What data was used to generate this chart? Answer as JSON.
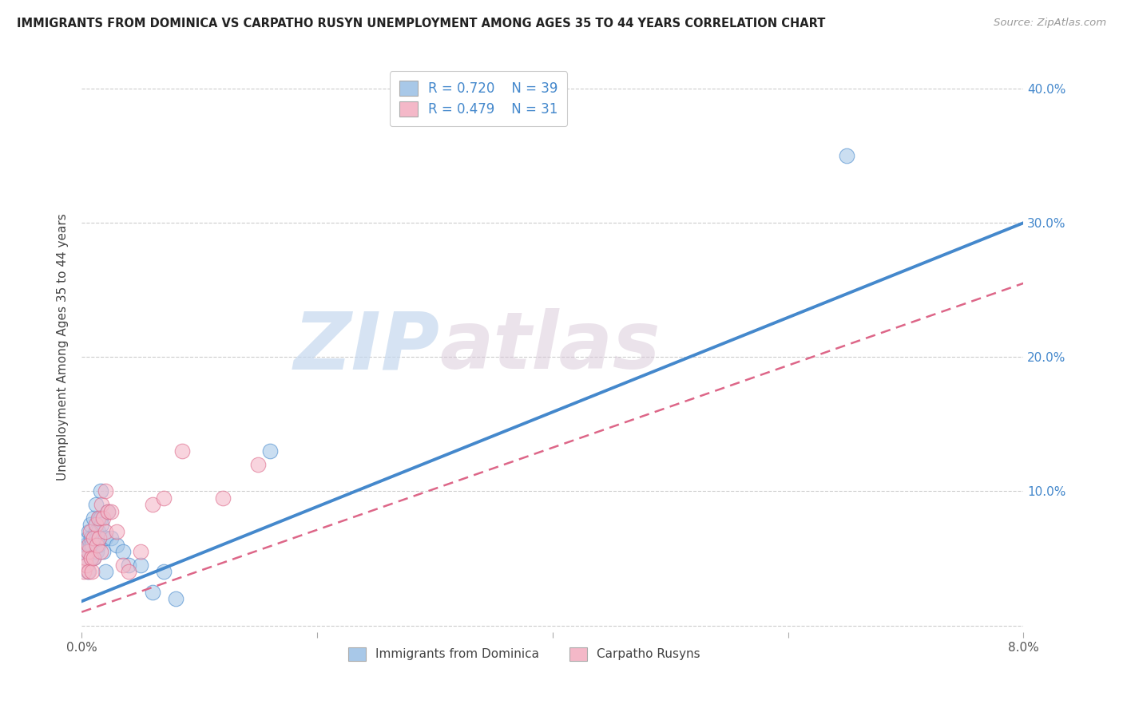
{
  "title": "IMMIGRANTS FROM DOMINICA VS CARPATHO RUSYN UNEMPLOYMENT AMONG AGES 35 TO 44 YEARS CORRELATION CHART",
  "source": "Source: ZipAtlas.com",
  "ylabel": "Unemployment Among Ages 35 to 44 years",
  "xlim": [
    0.0,
    0.08
  ],
  "ylim": [
    -0.005,
    0.42
  ],
  "yticks": [
    0.0,
    0.1,
    0.2,
    0.3,
    0.4
  ],
  "xticks": [
    0.0,
    0.02,
    0.04,
    0.06,
    0.08
  ],
  "xtick_labels": [
    "0.0%",
    "",
    "",
    "",
    "8.0%"
  ],
  "ytick_labels_right": [
    "",
    "10.0%",
    "20.0%",
    "30.0%",
    "40.0%"
  ],
  "legend_r1": "R = 0.720",
  "legend_n1": "N = 39",
  "legend_r2": "R = 0.479",
  "legend_n2": "N = 31",
  "color_blue": "#a8c8e8",
  "color_pink": "#f4b8c8",
  "line_blue": "#4488cc",
  "line_pink": "#dd6688",
  "watermark_zip": "ZIP",
  "watermark_atlas": "atlas",
  "background_color": "#ffffff",
  "blue_line_x0": 0.0,
  "blue_line_y0": 0.018,
  "blue_line_x1": 0.08,
  "blue_line_y1": 0.3,
  "pink_line_x0": 0.0,
  "pink_line_y0": 0.01,
  "pink_line_x1": 0.08,
  "pink_line_y1": 0.255,
  "scatter_blue_x": [
    0.0002,
    0.0003,
    0.0004,
    0.0005,
    0.0005,
    0.0006,
    0.0006,
    0.0007,
    0.0007,
    0.0008,
    0.0008,
    0.0009,
    0.001,
    0.001,
    0.0012,
    0.0012,
    0.0013,
    0.0013,
    0.0014,
    0.0014,
    0.0015,
    0.0015,
    0.0016,
    0.0016,
    0.0017,
    0.0018,
    0.002,
    0.002,
    0.0022,
    0.0025,
    0.003,
    0.0035,
    0.004,
    0.005,
    0.006,
    0.007,
    0.008,
    0.016,
    0.065
  ],
  "scatter_blue_y": [
    0.055,
    0.06,
    0.05,
    0.065,
    0.04,
    0.07,
    0.055,
    0.06,
    0.075,
    0.05,
    0.065,
    0.06,
    0.08,
    0.05,
    0.07,
    0.09,
    0.065,
    0.055,
    0.07,
    0.06,
    0.08,
    0.065,
    0.1,
    0.08,
    0.075,
    0.055,
    0.065,
    0.04,
    0.085,
    0.065,
    0.06,
    0.055,
    0.045,
    0.045,
    0.025,
    0.04,
    0.02,
    0.13,
    0.35
  ],
  "scatter_pink_x": [
    0.0002,
    0.0003,
    0.0004,
    0.0005,
    0.0006,
    0.0006,
    0.0007,
    0.0008,
    0.0009,
    0.001,
    0.001,
    0.0012,
    0.0013,
    0.0014,
    0.0015,
    0.0016,
    0.0017,
    0.0018,
    0.002,
    0.002,
    0.0022,
    0.0025,
    0.003,
    0.0035,
    0.004,
    0.005,
    0.006,
    0.007,
    0.0085,
    0.012,
    0.015
  ],
  "scatter_pink_y": [
    0.04,
    0.05,
    0.045,
    0.055,
    0.06,
    0.04,
    0.07,
    0.05,
    0.04,
    0.065,
    0.05,
    0.075,
    0.06,
    0.08,
    0.065,
    0.055,
    0.09,
    0.08,
    0.1,
    0.07,
    0.085,
    0.085,
    0.07,
    0.045,
    0.04,
    0.055,
    0.09,
    0.095,
    0.13,
    0.095,
    0.12
  ]
}
